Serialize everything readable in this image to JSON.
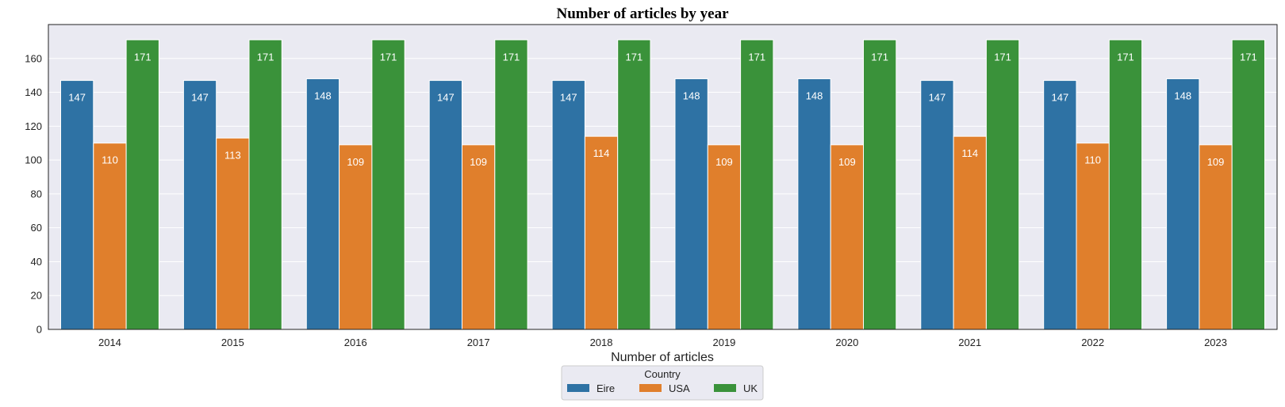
{
  "chart_data": {
    "type": "bar",
    "title": "Number of articles by year",
    "xlabel": "Number of articles",
    "ylabel": "",
    "ylim": [
      0,
      180
    ],
    "yticks": [
      0,
      20,
      40,
      60,
      80,
      100,
      120,
      140,
      160
    ],
    "grid": true,
    "categories": [
      "2014",
      "2015",
      "2016",
      "2017",
      "2018",
      "2019",
      "2020",
      "2021",
      "2022",
      "2023"
    ],
    "series": [
      {
        "name": "Eire",
        "color": "#2e72a4",
        "values": [
          147,
          147,
          148,
          147,
          147,
          148,
          148,
          147,
          147,
          148
        ]
      },
      {
        "name": "USA",
        "color": "#e07f2c",
        "values": [
          110,
          113,
          109,
          109,
          114,
          109,
          109,
          114,
          110,
          109
        ]
      },
      {
        "name": "UK",
        "color": "#3a923a",
        "values": [
          171,
          171,
          171,
          171,
          171,
          171,
          171,
          171,
          171,
          171
        ]
      }
    ],
    "legend": {
      "title": "Country",
      "placement": "bottom-center"
    }
  },
  "colors": {
    "plot_background": "#eaeaf2",
    "grid": "#ffffff"
  }
}
